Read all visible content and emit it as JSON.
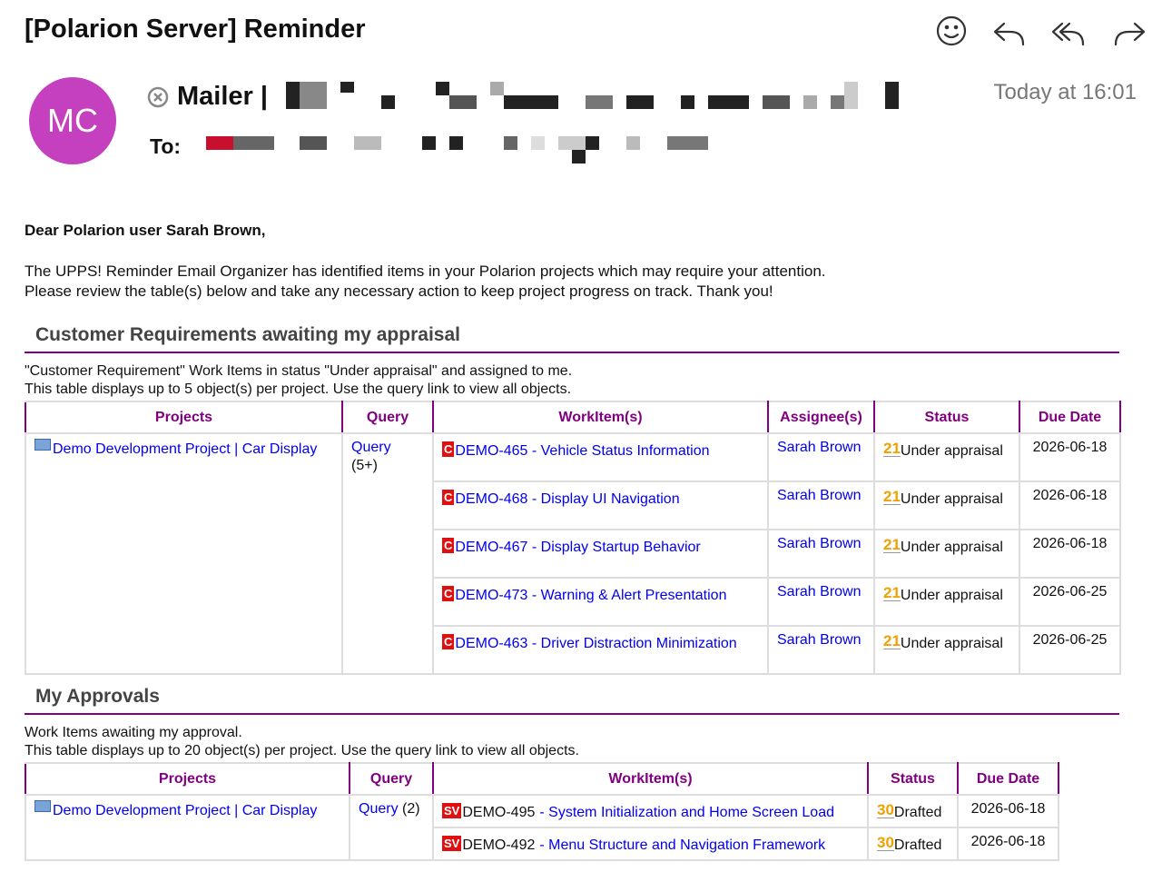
{
  "email": {
    "subject": "[Polarion Server] Reminder",
    "avatar": "MC",
    "from": "Mailer |",
    "to_label": "To:",
    "time": "Today at 16:01"
  },
  "body": {
    "greeting": "Dear Polarion user Sarah Brown,",
    "intro": [
      "The UPPS! Reminder Email Organizer has identified items in your Polarion projects which may require your attention.",
      "Please review the table(s) below and take any necessary action to keep project progress on track. Thank you!"
    ]
  },
  "sections": [
    {
      "title": "Customer Requirements awaiting my appraisal",
      "description": [
        "\"Customer Requirement\" Work Items in status \"Under appraisal\" and assigned to me.",
        "This table displays up to 5 object(s) per project. Use the query link to view all objects."
      ],
      "headers": [
        "Projects",
        "Query",
        "WorkItem(s)",
        "Assignee(s)",
        "Status",
        "Due Date"
      ],
      "project": "Demo Development Project | Car Display",
      "query": "Query",
      "query_count": "(5+)",
      "rows": [
        {
          "icon": "C",
          "workitem": "DEMO-465 - Vehicle Status Information",
          "assignee": "Sarah Brown",
          "status_icon": "21",
          "status": "Under appraisal",
          "due": "2026-06-18"
        },
        {
          "icon": "C",
          "workitem": "DEMO-468 - Display UI Navigation",
          "assignee": "Sarah Brown",
          "status_icon": "21",
          "status": "Under appraisal",
          "due": "2026-06-18"
        },
        {
          "icon": "C",
          "workitem": "DEMO-467 - Display Startup Behavior",
          "assignee": "Sarah Brown",
          "status_icon": "21",
          "status": "Under appraisal",
          "due": "2026-06-18"
        },
        {
          "icon": "C",
          "workitem": "DEMO-473 - Warning & Alert Presentation",
          "assignee": "Sarah Brown",
          "status_icon": "21",
          "status": "Under appraisal",
          "due": "2026-06-25"
        },
        {
          "icon": "C",
          "workitem": "DEMO-463 - Driver Distraction Minimization",
          "assignee": "Sarah Brown",
          "status_icon": "21",
          "status": "Under appraisal",
          "due": "2026-06-25"
        }
      ]
    },
    {
      "title": "My Approvals",
      "description": [
        "Work Items awaiting my approval.",
        "This table displays up to 20 object(s) per project. Use the query link to view all objects."
      ],
      "headers": [
        "Projects",
        "Query",
        "WorkItem(s)",
        "Status",
        "Due Date"
      ],
      "project": "Demo Development Project | Car Display",
      "query": "Query",
      "query_count": "(2)",
      "rows": [
        {
          "icon": "SV",
          "id": "DEMO-495",
          "workitem": "- System Initialization and Home Screen Load",
          "status_icon": "30",
          "status": "Drafted",
          "due": "2026-06-18"
        },
        {
          "icon": "SV",
          "id": "DEMO-492",
          "workitem": "- Menu Structure and Navigation Framework",
          "status_icon": "30",
          "status": "Drafted",
          "due": "2026-06-18"
        }
      ]
    }
  ]
}
